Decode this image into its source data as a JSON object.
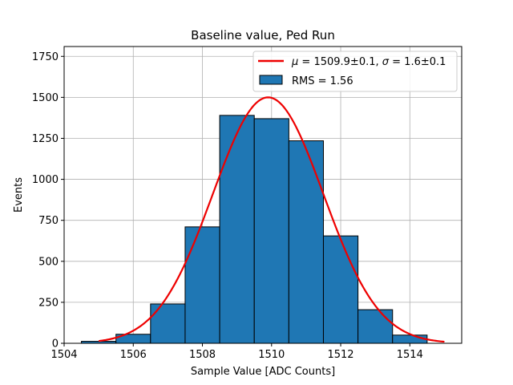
{
  "chart_data": {
    "type": "bar",
    "title": "Baseline value, Ped Run",
    "xlabel": "Sample Value [ADC Counts]",
    "ylabel": "Events",
    "xlim": [
      1504,
      1515.5
    ],
    "ylim": [
      0,
      1810
    ],
    "grid": true,
    "legend_position": "top-right",
    "x_ticks": [
      1504,
      1506,
      1508,
      1510,
      1512,
      1514
    ],
    "x_tick_labels": [
      "1504",
      "1506",
      "1508",
      "1510",
      "1512",
      "1514"
    ],
    "y_ticks": [
      0,
      250,
      500,
      750,
      1000,
      1250,
      1500,
      1750
    ],
    "y_tick_labels": [
      "0",
      "250",
      "500",
      "750",
      "1000",
      "1250",
      "1500",
      "1750"
    ],
    "histogram": {
      "name": "RMS = 1.56",
      "color": "#1f77b4",
      "edge_color": "#000000",
      "bins": [
        {
          "left": 1504.5,
          "right": 1505.5,
          "value": 12
        },
        {
          "left": 1505.5,
          "right": 1506.5,
          "value": 55
        },
        {
          "left": 1506.5,
          "right": 1507.5,
          "value": 240
        },
        {
          "left": 1507.5,
          "right": 1508.5,
          "value": 710
        },
        {
          "left": 1508.5,
          "right": 1509.5,
          "value": 1390
        },
        {
          "left": 1509.5,
          "right": 1510.5,
          "value": 1370
        },
        {
          "left": 1510.5,
          "right": 1511.5,
          "value": 1235
        },
        {
          "left": 1511.5,
          "right": 1512.5,
          "value": 655
        },
        {
          "left": 1512.5,
          "right": 1513.5,
          "value": 205
        },
        {
          "left": 1513.5,
          "right": 1514.5,
          "value": 50
        }
      ]
    },
    "fit": {
      "name": "μ = 1509.9±0.1, σ = 1.6±0.1",
      "label_parts": {
        "mu_symbol": "μ",
        "mu_value": " = 1509.9±0.1, ",
        "sigma_symbol": "σ",
        "sigma_value": " = 1.6±0.1"
      },
      "color": "#ee0000",
      "type": "gaussian",
      "mu": 1509.9,
      "sigma": 1.6,
      "amplitude": 1500,
      "x_range": [
        1505,
        1515
      ]
    }
  }
}
